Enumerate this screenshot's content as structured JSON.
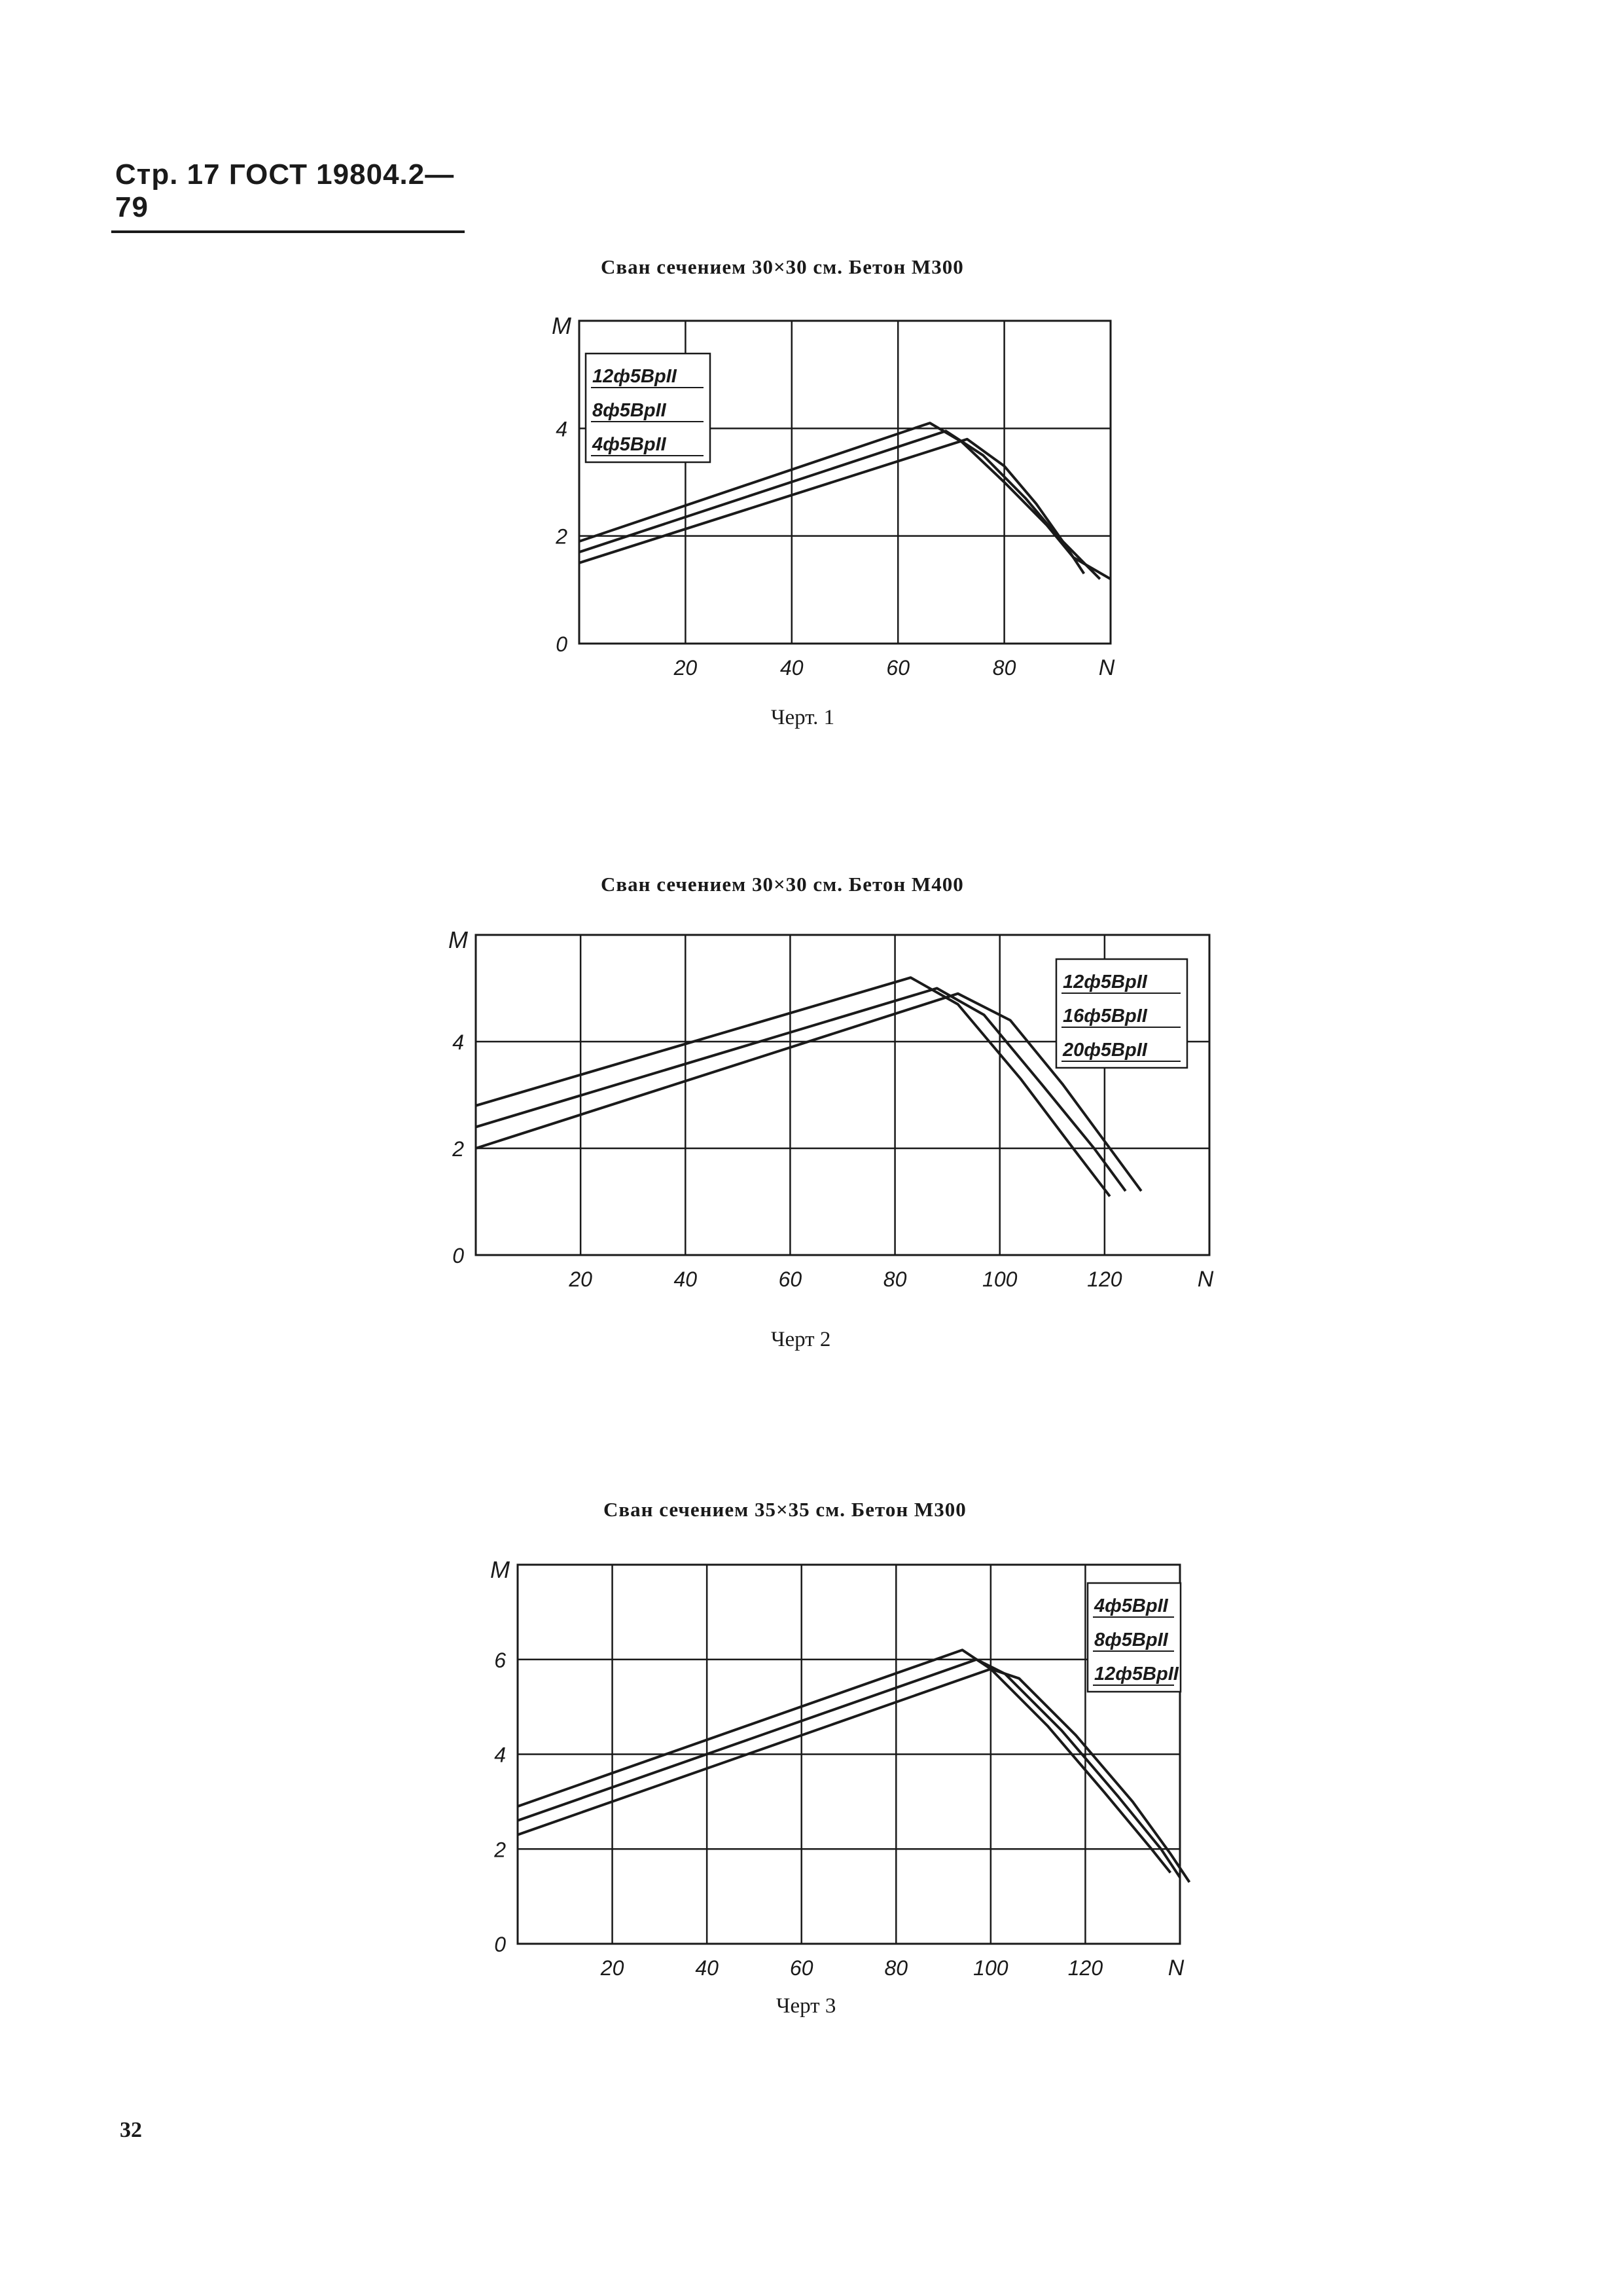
{
  "header": {
    "text": "Стр. 17 ГОСТ 19804.2—79"
  },
  "page_number": "32",
  "chart_data": [
    {
      "type": "line",
      "title": "Сван сечением 30×30 см. Бетон М300",
      "caption": "Черт. 1",
      "xlabel": "N",
      "ylabel": "M",
      "xlim": [
        0,
        100
      ],
      "ylim": [
        0,
        6
      ],
      "xticks": [
        20,
        40,
        60,
        80
      ],
      "yticks": [
        0,
        2,
        4
      ],
      "xtick_labels": [
        "20",
        "40",
        "60",
        "80"
      ],
      "ytick_labels": [
        "0",
        "2",
        "4"
      ],
      "grid": true,
      "legend": [
        "12ф5ВрII",
        "8ф5ВрII",
        "4ф5ВрII"
      ],
      "series": [
        {
          "name": "12ф5ВрII",
          "x": [
            0,
            66,
            72,
            80,
            88,
            93,
            100
          ],
          "y": [
            1.9,
            4.1,
            3.75,
            3.0,
            2.2,
            1.6,
            1.2
          ]
        },
        {
          "name": "8ф5ВрII",
          "x": [
            0,
            69,
            76,
            84,
            90,
            95,
            98
          ],
          "y": [
            1.7,
            3.95,
            3.5,
            2.7,
            2.0,
            1.5,
            1.2
          ]
        },
        {
          "name": "4ф5ВрII",
          "x": [
            0,
            73,
            80,
            86,
            91,
            95
          ],
          "y": [
            1.5,
            3.8,
            3.3,
            2.6,
            1.9,
            1.3
          ]
        }
      ]
    },
    {
      "type": "line",
      "title": "Сван сечением 30×30 см. Бетон М400",
      "caption": "Черт 2",
      "xlabel": "N",
      "ylabel": "M",
      "xlim": [
        0,
        140
      ],
      "ylim": [
        0,
        6
      ],
      "xticks": [
        20,
        40,
        60,
        80,
        100,
        120
      ],
      "yticks": [
        0,
        2,
        4
      ],
      "xtick_labels": [
        "20",
        "40",
        "60",
        "80",
        "100",
        "120"
      ],
      "ytick_labels": [
        "0",
        "2",
        "4"
      ],
      "grid": true,
      "legend": [
        "12ф5ВрII",
        "16ф5ВрII",
        "20ф5ВрII"
      ],
      "series": [
        {
          "name": "20ф5ВрII",
          "x": [
            0,
            83,
            92,
            104,
            114,
            121
          ],
          "y": [
            2.8,
            5.2,
            4.7,
            3.3,
            2.0,
            1.1
          ]
        },
        {
          "name": "16ф5ВрII",
          "x": [
            0,
            88,
            97,
            108,
            118,
            124
          ],
          "y": [
            2.4,
            5.0,
            4.5,
            3.2,
            2.0,
            1.2
          ]
        },
        {
          "name": "12ф5ВрII",
          "x": [
            0,
            92,
            102,
            112,
            121,
            127
          ],
          "y": [
            2.0,
            4.9,
            4.4,
            3.2,
            2.0,
            1.2
          ]
        }
      ]
    },
    {
      "type": "line",
      "title": "Сван сечением 35×35 см. Бетон М300",
      "caption": "Черт 3",
      "xlabel": "N",
      "ylabel": "M",
      "xlim": [
        0,
        140
      ],
      "ylim": [
        0,
        8
      ],
      "xticks": [
        20,
        40,
        60,
        80,
        100,
        120
      ],
      "yticks": [
        0,
        2,
        4,
        6
      ],
      "xtick_labels": [
        "20",
        "40",
        "60",
        "80",
        "100",
        "120"
      ],
      "ytick_labels": [
        "0",
        "2",
        "4",
        "6"
      ],
      "grid": true,
      "legend": [
        "4ф5ВрII",
        "8ф5ВрII",
        "12ф5ВрII"
      ],
      "series": [
        {
          "name": "12ф5ВрII",
          "x": [
            0,
            94,
            100,
            112,
            124,
            134,
            138
          ],
          "y": [
            2.9,
            6.2,
            5.8,
            4.6,
            3.2,
            2.0,
            1.5
          ]
        },
        {
          "name": "8ф5ВрII",
          "x": [
            0,
            97,
            103,
            115,
            127,
            136,
            140
          ],
          "y": [
            2.6,
            6.0,
            5.7,
            4.5,
            3.1,
            2.0,
            1.4
          ]
        },
        {
          "name": "4ф5ВрII",
          "x": [
            0,
            100,
            106,
            118,
            130,
            138,
            142
          ],
          "y": [
            2.3,
            5.8,
            5.6,
            4.4,
            3.0,
            1.9,
            1.3
          ]
        }
      ]
    }
  ]
}
